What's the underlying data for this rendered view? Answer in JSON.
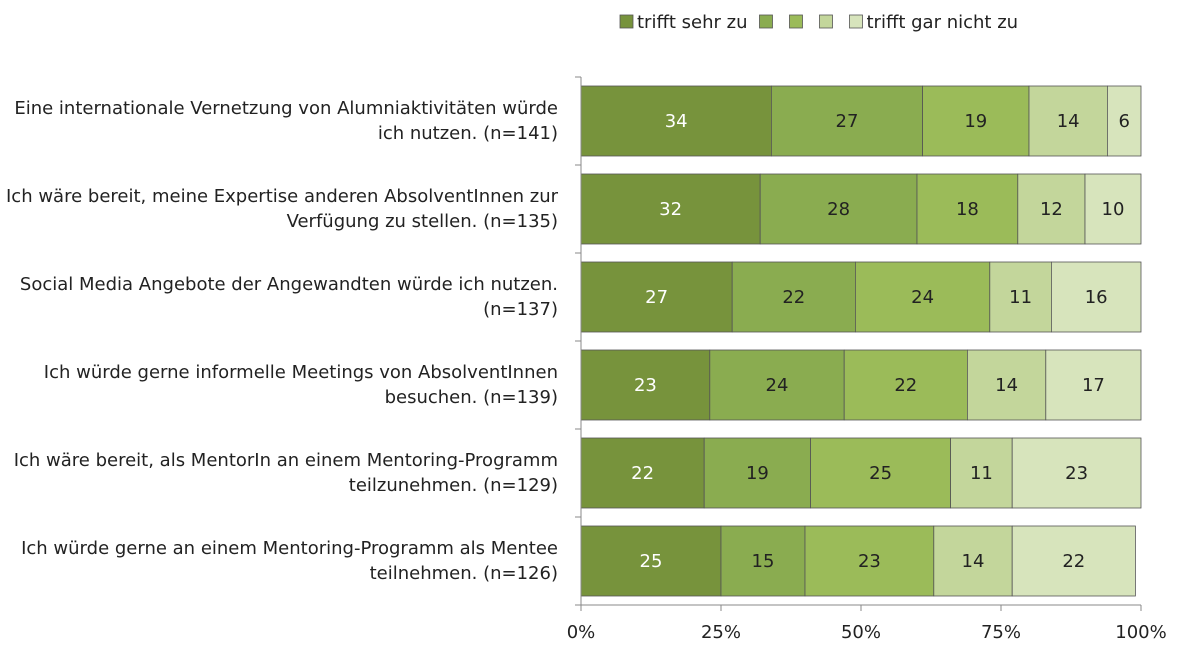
{
  "chart_data": {
    "type": "stacked-barh",
    "categories": [
      "Eine internationale Vernetzung von Alumniaktivitäten würde ich nutzen. (n=141)",
      "Ich wäre bereit, meine Expertise anderen AbsolventInnen zur Verfügung zu stellen. (n=135)",
      "Social Media Angebote der Angewandten würde ich nutzen. (n=137)",
      "Ich würde gerne informelle Meetings von AbsolventInnen besuchen. (n=139)",
      "Ich wäre bereit, als MentorIn an einem Mentoring-Programm teilzunehmen. (n=129)",
      "Ich würde gerne an einem Mentoring-Programm als Mentee teilnehmen. (n=126)"
    ],
    "series": [
      {
        "name": "trifft sehr zu",
        "color": "#77933c",
        "values": [
          34,
          32,
          27,
          23,
          22,
          25
        ]
      },
      {
        "color": "#8aac50",
        "values": [
          27,
          28,
          22,
          24,
          19,
          15
        ]
      },
      {
        "color": "#9bbb59",
        "values": [
          19,
          18,
          24,
          22,
          25,
          23
        ]
      },
      {
        "color": "#c3d69b",
        "values": [
          14,
          12,
          11,
          14,
          11,
          14
        ]
      },
      {
        "name": "trifft gar nicht zu",
        "color": "#d7e4bc",
        "values": [
          6,
          10,
          16,
          17,
          23,
          22
        ]
      }
    ],
    "xlim": [
      0,
      100
    ],
    "xticks": [
      {
        "value": 0,
        "label": "0%"
      },
      {
        "value": 25,
        "label": "25%"
      },
      {
        "value": 50,
        "label": "50%"
      },
      {
        "value": 75,
        "label": "75%"
      },
      {
        "value": 100,
        "label": "100%"
      }
    ],
    "legend": "top"
  }
}
